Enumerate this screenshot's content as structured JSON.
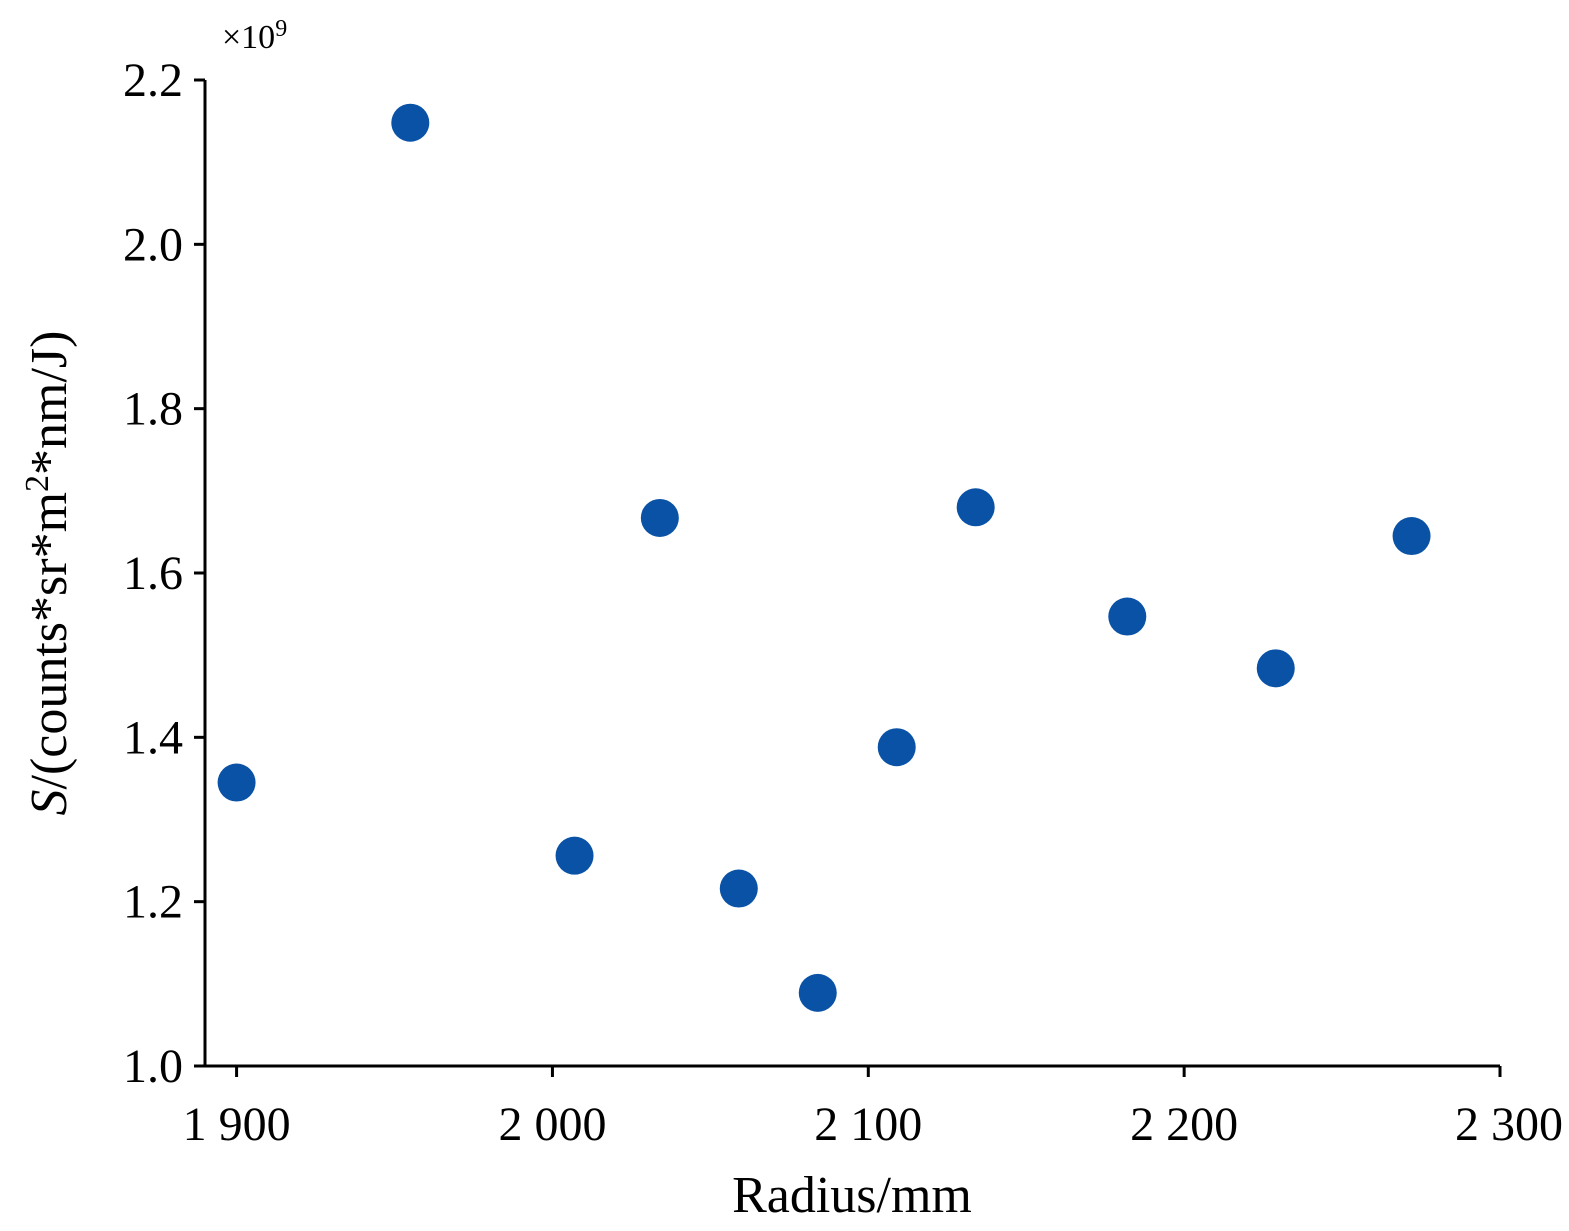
{
  "chart_data": {
    "type": "scatter",
    "xlabel": "Radius/mm",
    "ylabel": "S/(counts*sr*m²*nm/J)",
    "ylabel_parts": {
      "var": "S",
      "pre": "/(counts*sr*m",
      "sup": "2",
      "post": "*nm/J)"
    },
    "y_multiplier": {
      "prefix": "×10",
      "sup": "9"
    },
    "xlim": [
      1890,
      2300
    ],
    "ylim": [
      1.0,
      2.2
    ],
    "xticks": [
      1900,
      2000,
      2100,
      2200,
      2300
    ],
    "xtick_labels": [
      "1 900",
      "2 000",
      "2 100",
      "2 200",
      "2 300"
    ],
    "yticks": [
      1.0,
      1.2,
      1.4,
      1.6,
      1.8,
      2.0,
      2.2
    ],
    "ytick_labels": [
      "1.0",
      "1.2",
      "1.4",
      "1.6",
      "1.8",
      "2.0",
      "2.2"
    ],
    "grid": false,
    "marker_color": "#0a52a6",
    "series": [
      {
        "x": [
          1900,
          1955,
          2007,
          2034,
          2059,
          2084,
          2109,
          2134,
          2182,
          2229,
          2272
        ],
        "y": [
          1.345,
          2.148,
          1.256,
          1.667,
          1.216,
          1.089,
          1.388,
          1.68,
          1.547,
          1.484,
          1.645
        ]
      }
    ]
  }
}
